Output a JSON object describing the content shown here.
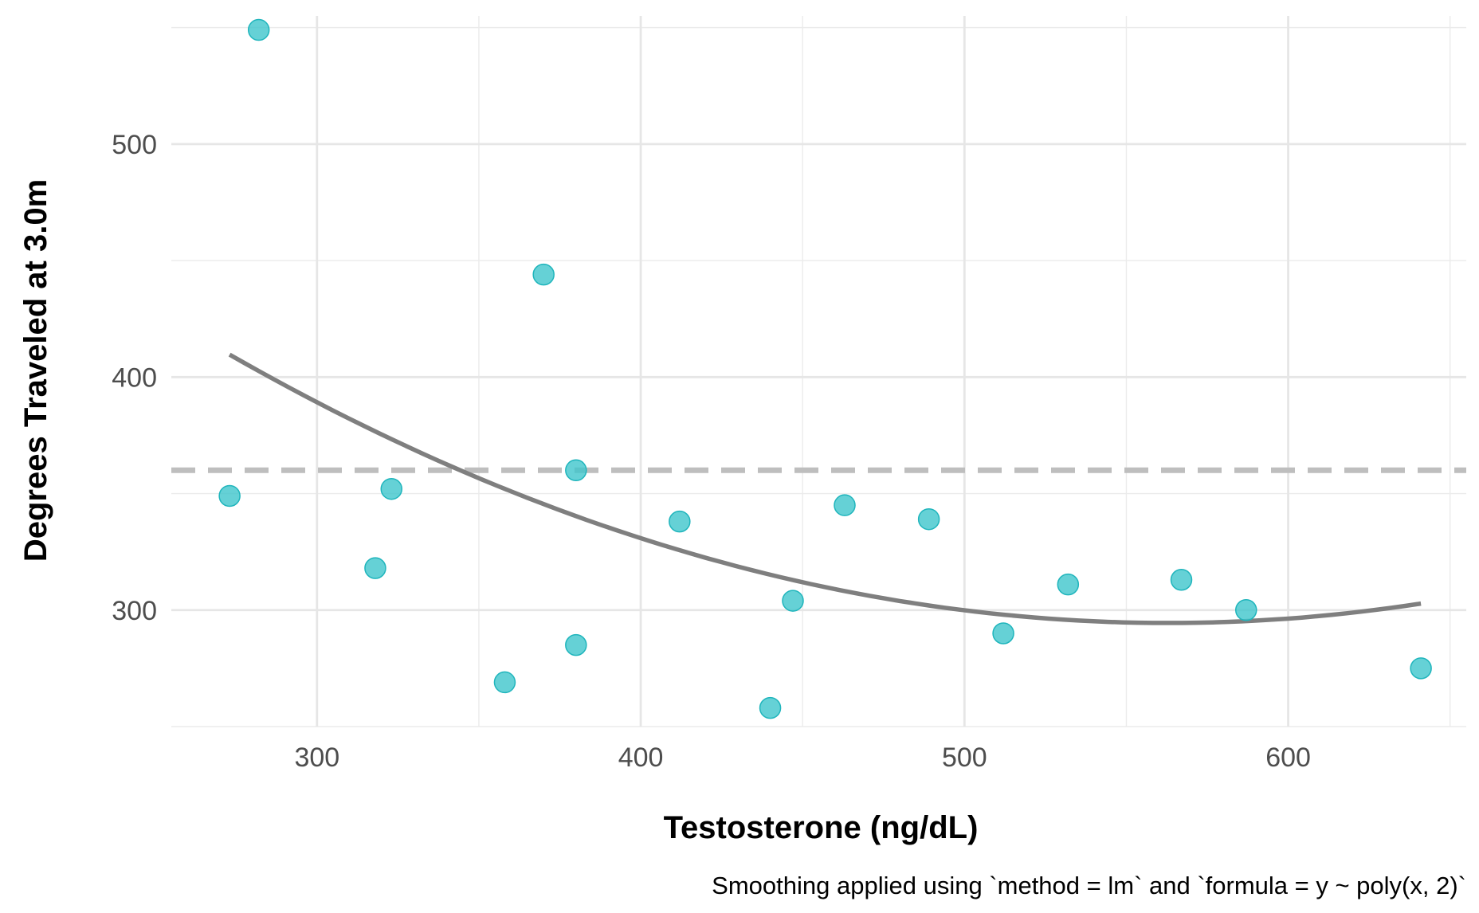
{
  "chart_data": {
    "type": "scatter",
    "title": "",
    "xlabel": "Testosterone (ng/dL)",
    "ylabel": "Degrees Traveled at 3.0m",
    "caption": "Smoothing applied using `method = lm` and `formula = y ~ poly(x, 2)`",
    "xlim": [
      255,
      655
    ],
    "ylim": [
      250,
      555
    ],
    "x_ticks": [
      300,
      400,
      500,
      600
    ],
    "y_ticks": [
      300,
      400,
      500
    ],
    "x_minor": [
      350,
      450,
      550,
      650
    ],
    "y_minor": [
      250,
      350,
      450,
      550
    ],
    "grid": true,
    "reference_line": {
      "y": 360,
      "style": "dashed",
      "color": "#bebebe"
    },
    "points": {
      "color": "#3fc6cc",
      "x": [
        273,
        282,
        318,
        323,
        358,
        370,
        380,
        380,
        412,
        440,
        447,
        463,
        489,
        512,
        532,
        567,
        587,
        641
      ],
      "y": [
        349,
        549,
        318,
        352,
        269,
        444,
        285,
        360,
        338,
        258,
        304,
        345,
        339,
        290,
        311,
        313,
        300,
        275
      ]
    },
    "smooth": {
      "method": "poly2",
      "color": "#7f7f7f",
      "x": [
        273,
        300,
        350,
        400,
        450,
        500,
        550,
        600,
        641
      ],
      "y": [
        410,
        390,
        355,
        330,
        313,
        300,
        295,
        297,
        302
      ]
    }
  }
}
